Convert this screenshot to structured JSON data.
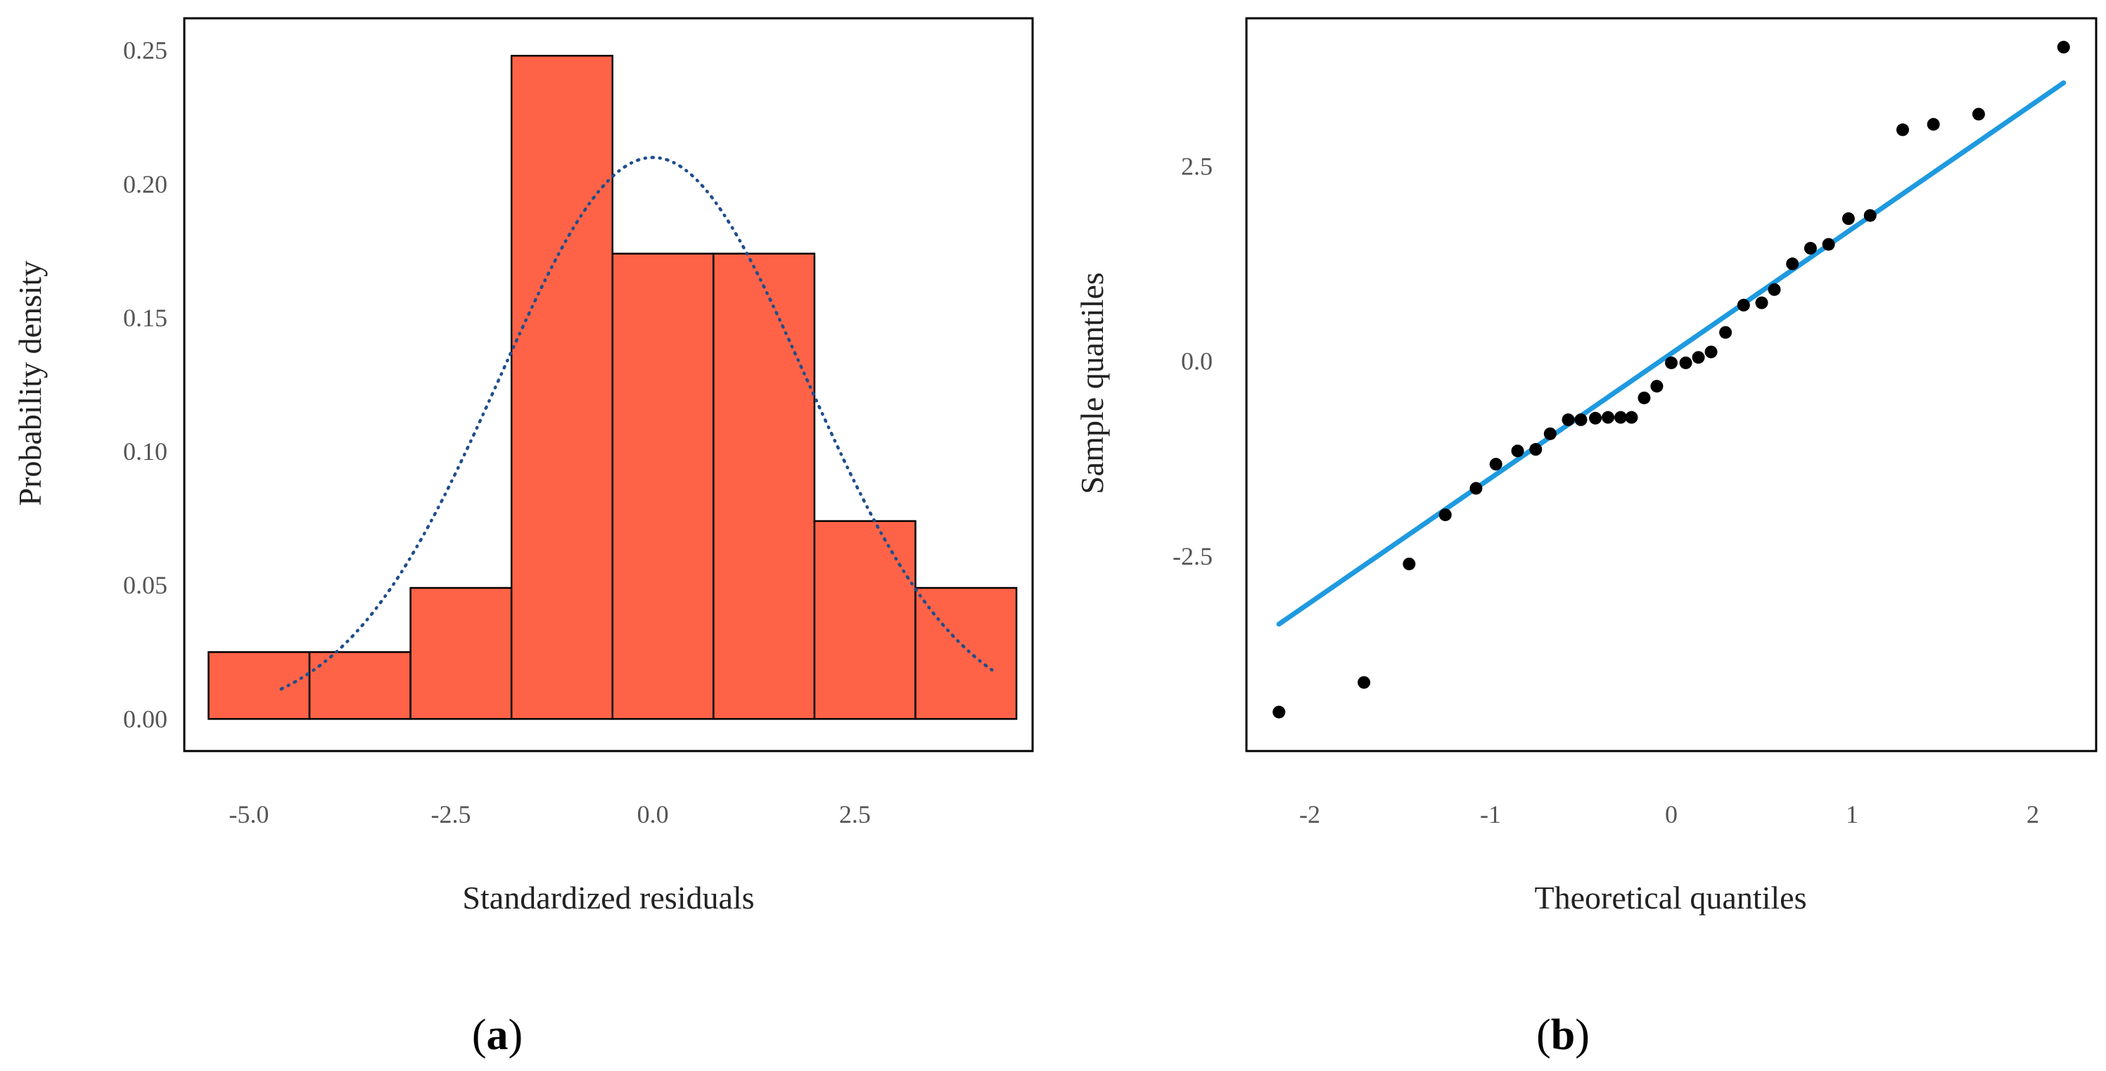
{
  "chart_data": [
    {
      "type": "bar",
      "panel": "a",
      "title": "",
      "xlabel": "Standardized residuals",
      "ylabel": "Probability density",
      "xlim": [
        -5.8,
        4.7
      ],
      "ylim": [
        -0.012,
        0.262
      ],
      "xticks": [
        -5.0,
        -2.5,
        0.0,
        2.5
      ],
      "xtick_labels": [
        "-5.0",
        "-2.5",
        "0.0",
        "2.5"
      ],
      "yticks": [
        0.0,
        0.05,
        0.1,
        0.15,
        0.2,
        0.25
      ],
      "ytick_labels": [
        "0.00",
        "0.05",
        "0.10",
        "0.15",
        "0.20",
        "0.25"
      ],
      "bins": [
        {
          "x0": -5.5,
          "x1": -4.25,
          "density": 0.025
        },
        {
          "x0": -4.25,
          "x1": -3.0,
          "density": 0.025
        },
        {
          "x0": -3.0,
          "x1": -1.75,
          "density": 0.049
        },
        {
          "x0": -1.75,
          "x1": -0.5,
          "density": 0.248
        },
        {
          "x0": -0.5,
          "x1": 0.75,
          "density": 0.174
        },
        {
          "x0": 0.75,
          "x1": 2.0,
          "density": 0.174
        },
        {
          "x0": 2.0,
          "x1": 3.25,
          "density": 0.074
        },
        {
          "x0": 3.25,
          "x1": 4.5,
          "density": 0.049
        }
      ],
      "density_curve": {
        "type": "normal",
        "mean": 0.0,
        "sd": 1.9,
        "x_range": [
          -4.6,
          4.2
        ],
        "style": "dash-dot"
      },
      "colors": {
        "bar_fill": "#FF6347",
        "bar_edge": "#000000",
        "curve": "#1F4E8C"
      },
      "panel_label": "a"
    },
    {
      "type": "scatter",
      "panel": "b",
      "title": "",
      "xlabel": "Theoretical quantiles",
      "ylabel": "Sample quantiles",
      "xlim": [
        -2.35,
        2.35
      ],
      "ylim": [
        -5.0,
        4.4
      ],
      "xticks": [
        -2,
        -1,
        0,
        1,
        2
      ],
      "xtick_labels": [
        "-2",
        "-1",
        "0",
        "1",
        "2"
      ],
      "yticks": [
        -2.5,
        0.0,
        2.5
      ],
      "ytick_labels": [
        "-2.5",
        "0.0",
        "2.5"
      ],
      "points": [
        {
          "x": -2.17,
          "y": -4.5
        },
        {
          "x": -1.7,
          "y": -4.12
        },
        {
          "x": -1.45,
          "y": -2.6
        },
        {
          "x": -1.25,
          "y": -1.97
        },
        {
          "x": -1.08,
          "y": -1.63
        },
        {
          "x": -0.97,
          "y": -1.32
        },
        {
          "x": -0.85,
          "y": -1.15
        },
        {
          "x": -0.75,
          "y": -1.13
        },
        {
          "x": -0.67,
          "y": -0.93
        },
        {
          "x": -0.57,
          "y": -0.75
        },
        {
          "x": -0.5,
          "y": -0.75
        },
        {
          "x": -0.42,
          "y": -0.73
        },
        {
          "x": -0.35,
          "y": -0.72
        },
        {
          "x": -0.28,
          "y": -0.72
        },
        {
          "x": -0.22,
          "y": -0.72
        },
        {
          "x": -0.15,
          "y": -0.47
        },
        {
          "x": -0.08,
          "y": -0.32
        },
        {
          "x": 0.0,
          "y": -0.02
        },
        {
          "x": 0.08,
          "y": -0.02
        },
        {
          "x": 0.15,
          "y": 0.05
        },
        {
          "x": 0.22,
          "y": 0.12
        },
        {
          "x": 0.3,
          "y": 0.37
        },
        {
          "x": 0.4,
          "y": 0.72
        },
        {
          "x": 0.5,
          "y": 0.75
        },
        {
          "x": 0.57,
          "y": 0.92
        },
        {
          "x": 0.67,
          "y": 1.25
        },
        {
          "x": 0.77,
          "y": 1.45
        },
        {
          "x": 0.87,
          "y": 1.5
        },
        {
          "x": 0.98,
          "y": 1.83
        },
        {
          "x": 1.1,
          "y": 1.87
        },
        {
          "x": 1.28,
          "y": 2.97
        },
        {
          "x": 1.45,
          "y": 3.04
        },
        {
          "x": 1.7,
          "y": 3.17
        },
        {
          "x": 2.17,
          "y": 4.03
        }
      ],
      "reference_line": {
        "slope": 1.6,
        "intercept": 0.1,
        "x_range": [
          -2.17,
          2.17
        ]
      },
      "colors": {
        "points": "#000000",
        "line": "#1E9AE0"
      },
      "panel_label": "b"
    }
  ]
}
